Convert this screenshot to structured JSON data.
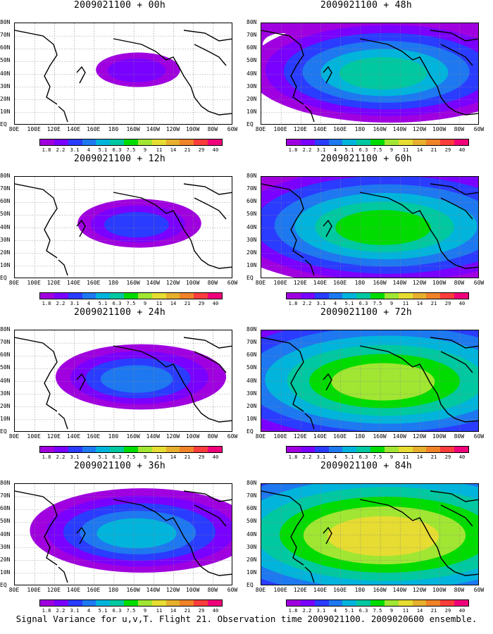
{
  "panels": [
    {
      "title": "2009021100 + 00h",
      "stage": 0
    },
    {
      "title": "2009021100 + 48h",
      "stage": 4
    },
    {
      "title": "2009021100 + 12h",
      "stage": 1
    },
    {
      "title": "2009021100 + 60h",
      "stage": 5
    },
    {
      "title": "2009021100 + 24h",
      "stage": 2
    },
    {
      "title": "2009021100 + 72h",
      "stage": 6
    },
    {
      "title": "2009021100 + 36h",
      "stage": 3
    },
    {
      "title": "2009021100 + 84h",
      "stage": 7
    }
  ],
  "lat_labels": [
    "80N",
    "70N",
    "60N",
    "50N",
    "40N",
    "30N",
    "20N",
    "10N",
    "EQ"
  ],
  "lon_labels": [
    "80E",
    "100E",
    "120E",
    "140E",
    "160E",
    "180",
    "160W",
    "140W",
    "120W",
    "100W",
    "80W",
    "60W"
  ],
  "colorbar": {
    "labels": [
      "1.8",
      "2.2",
      "3.1",
      "4",
      "5.1",
      "6.3",
      "7.5",
      "9",
      "11",
      "14",
      "21",
      "29",
      "40"
    ],
    "colors": [
      "#a000e0",
      "#7a00ff",
      "#2a3cff",
      "#1e78f0",
      "#00b4dc",
      "#00c8a0",
      "#00dc00",
      "#a0e632",
      "#e6dc32",
      "#e6af2d",
      "#f08228",
      "#fa3c3c",
      "#f0007a"
    ]
  },
  "footer": "Signal Variance for u,v,T. Flight 21. Observation time 2009021100. 2009020600 ensemble."
}
